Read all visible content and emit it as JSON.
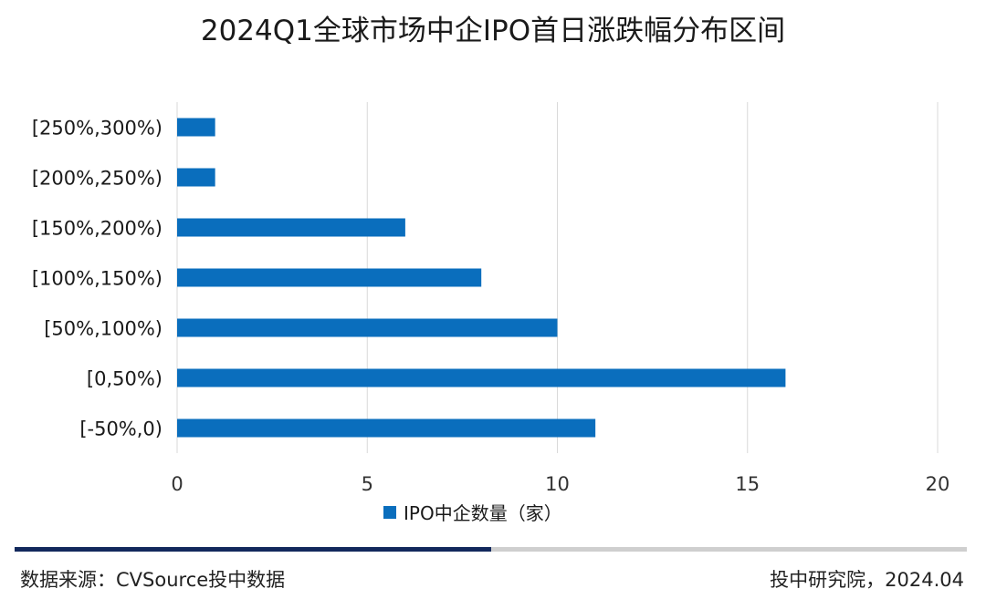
{
  "chart_data": {
    "type": "bar",
    "orientation": "horizontal",
    "title": "2024Q1全球市场中企IPO首日涨跌幅分布区间",
    "categories": [
      "[250%,300%)",
      "[200%,250%)",
      "[150%,200%)",
      "[100%,150%)",
      "[50%,100%)",
      "[0,50%)",
      "[-50%,0)"
    ],
    "series": [
      {
        "name": "IPO中企数量（家）",
        "values": [
          1,
          1,
          6,
          8,
          10,
          16,
          11
        ],
        "color": "#0a6ebd"
      }
    ],
    "xlim": [
      0,
      20
    ],
    "x_ticks": [
      "0",
      "5",
      "10",
      "15",
      "20"
    ],
    "grid": true,
    "legend": "bottom"
  },
  "footer": {
    "source": "数据来源：CVSource投中数据",
    "credit": "投中研究院，2024.04"
  },
  "colors": {
    "bar": "#0a6ebd",
    "footer_dark": "#12285c",
    "footer_light": "#cfcfcf",
    "grid": "#d9d9d9"
  }
}
